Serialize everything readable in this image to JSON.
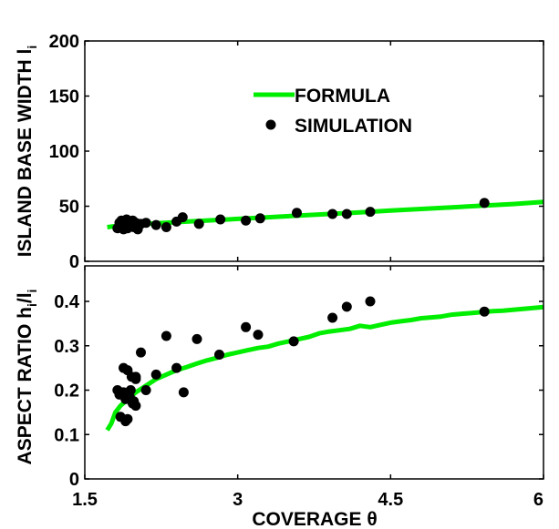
{
  "chart_data": [
    {
      "type": "line+scatter",
      "panel": "top",
      "ylabel": "ISLAND BASE WIDTH l",
      "ylabel_subscript": "i",
      "xlim": [
        1.5,
        6
      ],
      "ylim": [
        0,
        200
      ],
      "yticks": [
        0,
        50,
        100,
        150,
        200
      ],
      "grid": false,
      "legend": {
        "placement": "upper-center",
        "entries": [
          {
            "label": "FORMULA",
            "kind": "line",
            "color": "#00ee00"
          },
          {
            "label": "SIMULATION",
            "kind": "marker",
            "color": "#000000"
          }
        ]
      },
      "series": [
        {
          "name": "FORMULA",
          "kind": "line",
          "color": "#00ee00",
          "x": [
            1.72,
            1.8,
            1.9,
            2.0,
            2.2,
            2.4,
            2.6,
            2.8,
            3.0,
            3.3,
            3.6,
            3.9,
            4.2,
            4.5,
            4.8,
            5.1,
            5.4,
            5.7,
            6.0
          ],
          "y": [
            31,
            32,
            33,
            33.5,
            34.5,
            35.5,
            36.5,
            37.5,
            38.5,
            40,
            41.5,
            43,
            44.5,
            46,
            47.5,
            49,
            50.5,
            52,
            54
          ]
        },
        {
          "name": "SIMULATION",
          "kind": "scatter",
          "color": "#000000",
          "x": [
            1.82,
            1.84,
            1.86,
            1.87,
            1.88,
            1.9,
            1.91,
            1.92,
            1.93,
            1.95,
            1.97,
            1.98,
            2.0,
            2.02,
            2.05,
            2.1,
            2.2,
            2.3,
            2.4,
            2.46,
            2.62,
            2.83,
            3.08,
            3.22,
            3.58,
            3.93,
            4.07,
            4.3,
            5.42
          ],
          "y": [
            30,
            35,
            37,
            32,
            29,
            34,
            38,
            30,
            36,
            33,
            37,
            31,
            35,
            29,
            34,
            35,
            33,
            31,
            36,
            40,
            34,
            38,
            37,
            39,
            44,
            43,
            43,
            45,
            53
          ]
        }
      ]
    },
    {
      "type": "line+scatter",
      "panel": "bottom",
      "xlabel": "COVERAGE θ",
      "ylabel": "ASPECT RATIO h",
      "ylabel_subscript_1": "i",
      "ylabel_mid": "/l",
      "ylabel_subscript_2": "i",
      "xlim": [
        1.5,
        6
      ],
      "ylim": [
        0,
        0.48
      ],
      "xticks": [
        1.5,
        3,
        4.5,
        6
      ],
      "xtick_labels": [
        "1.5",
        "3",
        "4.5",
        "6"
      ],
      "yticks": [
        0,
        0.1,
        0.2,
        0.3,
        0.4
      ],
      "ytick_labels": [
        "0",
        "0.1",
        "0.2",
        "0.3",
        "0.4"
      ],
      "grid": false,
      "series": [
        {
          "name": "FORMULA",
          "kind": "line",
          "color": "#00ee00",
          "x": [
            1.72,
            1.76,
            1.8,
            1.85,
            1.9,
            1.95,
            2.0,
            2.1,
            2.2,
            2.3,
            2.4,
            2.5,
            2.6,
            2.7,
            2.8,
            2.9,
            3.0,
            3.1,
            3.2,
            3.3,
            3.4,
            3.5,
            3.6,
            3.7,
            3.8,
            3.9,
            4.0,
            4.1,
            4.2,
            4.3,
            4.4,
            4.5,
            4.6,
            4.7,
            4.8,
            4.9,
            5.0,
            5.1,
            5.2,
            5.3,
            5.4,
            5.5,
            5.6,
            5.7,
            5.8,
            5.9,
            6.0
          ],
          "y": [
            0.11,
            0.125,
            0.15,
            0.165,
            0.175,
            0.185,
            0.195,
            0.21,
            0.225,
            0.235,
            0.245,
            0.252,
            0.26,
            0.267,
            0.273,
            0.28,
            0.285,
            0.29,
            0.295,
            0.298,
            0.305,
            0.31,
            0.315,
            0.32,
            0.328,
            0.332,
            0.335,
            0.338,
            0.345,
            0.342,
            0.347,
            0.352,
            0.355,
            0.358,
            0.362,
            0.364,
            0.366,
            0.37,
            0.372,
            0.374,
            0.376,
            0.378,
            0.379,
            0.381,
            0.383,
            0.385,
            0.387
          ]
        },
        {
          "name": "SIMULATION",
          "kind": "scatter",
          "color": "#000000",
          "x": [
            1.82,
            1.84,
            1.86,
            1.88,
            1.9,
            1.92,
            1.94,
            1.96,
            1.98,
            1.9,
            1.92,
            1.85,
            1.88,
            1.95,
            2.0,
            1.97,
            2.0,
            2.05,
            2.1,
            2.2,
            2.3,
            2.4,
            2.47,
            2.6,
            2.82,
            3.08,
            3.2,
            3.55,
            3.93,
            4.07,
            4.3,
            5.42,
            2.0
          ],
          "y": [
            0.2,
            0.19,
            0.195,
            0.25,
            0.18,
            0.245,
            0.185,
            0.23,
            0.175,
            0.13,
            0.135,
            0.14,
            0.195,
            0.2,
            0.225,
            0.17,
            0.165,
            0.285,
            0.2,
            0.235,
            0.322,
            0.25,
            0.195,
            0.315,
            0.28,
            0.342,
            0.325,
            0.31,
            0.363,
            0.388,
            0.4,
            0.377,
            0.23
          ]
        }
      ]
    }
  ]
}
